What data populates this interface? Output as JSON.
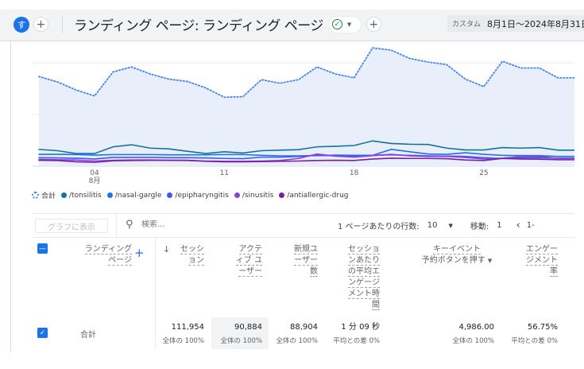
{
  "header": {
    "avatar_letter": "す",
    "title": "ランディング ページ: ランディング ページ",
    "date_label": "カスタム",
    "date_range": "8月1日～2024年8月31日"
  },
  "colors": {
    "accent": "#1a73e8",
    "total": "#4285f4",
    "tonsilitis": "#12739a",
    "nasal_gargle": "#1a73e8",
    "epipharyngitis": "#4058f0",
    "sinusitis": "#8a3fe0",
    "antiallergic_drug": "#7b1fa2",
    "status_ok": "#188038"
  },
  "chart_data": {
    "type": "line",
    "x": [
      1,
      2,
      3,
      4,
      5,
      6,
      7,
      8,
      9,
      10,
      11,
      12,
      13,
      14,
      15,
      16,
      17,
      18,
      19,
      20,
      21,
      22,
      23,
      24,
      25,
      26,
      27,
      28,
      29,
      30
    ],
    "xticks": [
      {
        "day": 4,
        "label": "04",
        "sub": "8月"
      },
      {
        "day": 11,
        "label": "11"
      },
      {
        "day": 18,
        "label": "18"
      },
      {
        "day": 25,
        "label": "25"
      }
    ],
    "grid": true,
    "series": [
      {
        "name": "合計",
        "key": "total",
        "style": "dotted",
        "values": [
          3470,
          3260,
          2950,
          2720,
          3650,
          3840,
          3570,
          3370,
          3280,
          3030,
          2670,
          2690,
          3350,
          3210,
          3350,
          3840,
          3570,
          3420,
          4580,
          4490,
          4170,
          4030,
          3930,
          3370,
          3080,
          4060,
          3800,
          3800,
          3420,
          3420
        ]
      },
      {
        "name": "/tonsilitis",
        "key": "tonsilitis",
        "values": [
          650,
          600,
          490,
          490,
          750,
          830,
          700,
          670,
          580,
          490,
          560,
          510,
          600,
          620,
          640,
          750,
          770,
          800,
          980,
          880,
          850,
          840,
          700,
          630,
          630,
          720,
          700,
          720,
          620,
          620
        ]
      },
      {
        "name": "/nasal-gargle",
        "key": "nasal_gargle",
        "values": [
          460,
          460,
          450,
          430,
          450,
          450,
          450,
          440,
          440,
          440,
          450,
          450,
          420,
          400,
          400,
          410,
          430,
          420,
          420,
          650,
          560,
          470,
          460,
          520,
          460,
          420,
          410,
          410,
          380,
          380
        ]
      },
      {
        "name": "/epipharyngitis",
        "key": "epipharyngitis",
        "values": [
          330,
          320,
          310,
          280,
          340,
          340,
          340,
          330,
          330,
          320,
          300,
          290,
          350,
          350,
          380,
          420,
          400,
          380,
          420,
          440,
          420,
          400,
          390,
          380,
          330,
          300,
          320,
          330,
          310,
          310
        ]
      },
      {
        "name": "/sinusitis",
        "key": "sinusitis",
        "values": [
          260,
          250,
          240,
          200,
          230,
          240,
          240,
          230,
          220,
          200,
          190,
          190,
          200,
          220,
          300,
          470,
          390,
          350,
          410,
          460,
          400,
          380,
          380,
          340,
          280,
          310,
          370,
          380,
          300,
          300
        ]
      },
      {
        "name": "/antiallergic-drug",
        "key": "antiallergic_drug",
        "values": [
          230,
          220,
          170,
          150,
          210,
          220,
          230,
          230,
          230,
          190,
          170,
          170,
          180,
          190,
          200,
          220,
          230,
          220,
          280,
          310,
          300,
          300,
          290,
          240,
          220,
          300,
          280,
          270,
          250,
          250
        ]
      }
    ]
  },
  "toolbar": {
    "graph_button": "グラフに表示",
    "search_placeholder": "検索...",
    "rows_label": "1 ページあたりの行数:",
    "rows_value": "10",
    "goto_label": "移動:",
    "goto_value": "1",
    "page_range": "1-"
  },
  "table": {
    "dimension_header": "ランディング ページ",
    "columns": [
      {
        "header": "セッション",
        "total": "111,954",
        "sub": "全体の 100%"
      },
      {
        "header": "アクティブ ユーザー",
        "total": "90,884",
        "sub": "全体の 100%"
      },
      {
        "header": "新規ユーザー数",
        "total": "88,904",
        "sub": "全体の 100%"
      },
      {
        "header": "セッションあたりの平均エンゲージメント時間",
        "total": "1 分 09 秒",
        "sub": "平均との差 0%"
      },
      {
        "header": "キーイベント",
        "header2": "予約ボタンを押す",
        "total": "4,986.00",
        "sub": "全体の 100%"
      },
      {
        "header": "エンゲージメント率",
        "total": "56.75%",
        "sub": "平均との差 0%"
      }
    ],
    "total_row_label": "合計"
  }
}
